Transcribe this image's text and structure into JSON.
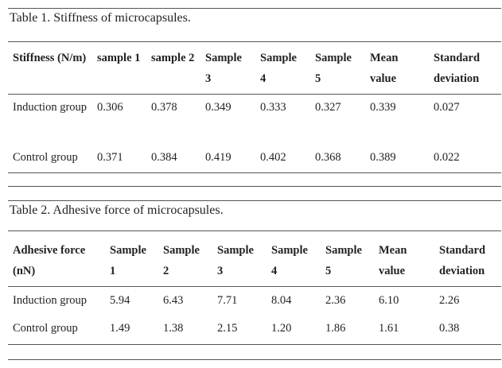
{
  "tables": [
    {
      "title": "Table 1. Stiffness of microcapsules.",
      "header": [
        "Stiffness (N/m)",
        "sample 1",
        "sample 2",
        "Sample 3",
        "Sample 4",
        "Sample 5",
        "Mean value",
        "Standard deviation"
      ],
      "rows": [
        [
          "Induction group",
          "0.306",
          "0.378",
          "0.349",
          "0.333",
          "0.327",
          "0.339",
          "0.027"
        ],
        [
          "Control group",
          "0.371",
          "0.384",
          "0.419",
          "0.402",
          "0.368",
          "0.389",
          "0.022"
        ]
      ]
    },
    {
      "title": "Table 2. Adhesive force of microcapsules.",
      "header": [
        "Adhesive force (nN)",
        "Sample 1",
        "Sample 2",
        "Sample 3",
        "Sample 4",
        "Sample 5",
        "Mean value",
        "Standard deviation"
      ],
      "rows": [
        [
          "Induction group",
          "5.94",
          "6.43",
          "7.71",
          "8.04",
          "2.36",
          "6.10",
          "2.26"
        ],
        [
          "Control group",
          "1.49",
          "1.38",
          "2.15",
          "1.20",
          "1.86",
          "1.61",
          "0.38"
        ]
      ]
    }
  ]
}
